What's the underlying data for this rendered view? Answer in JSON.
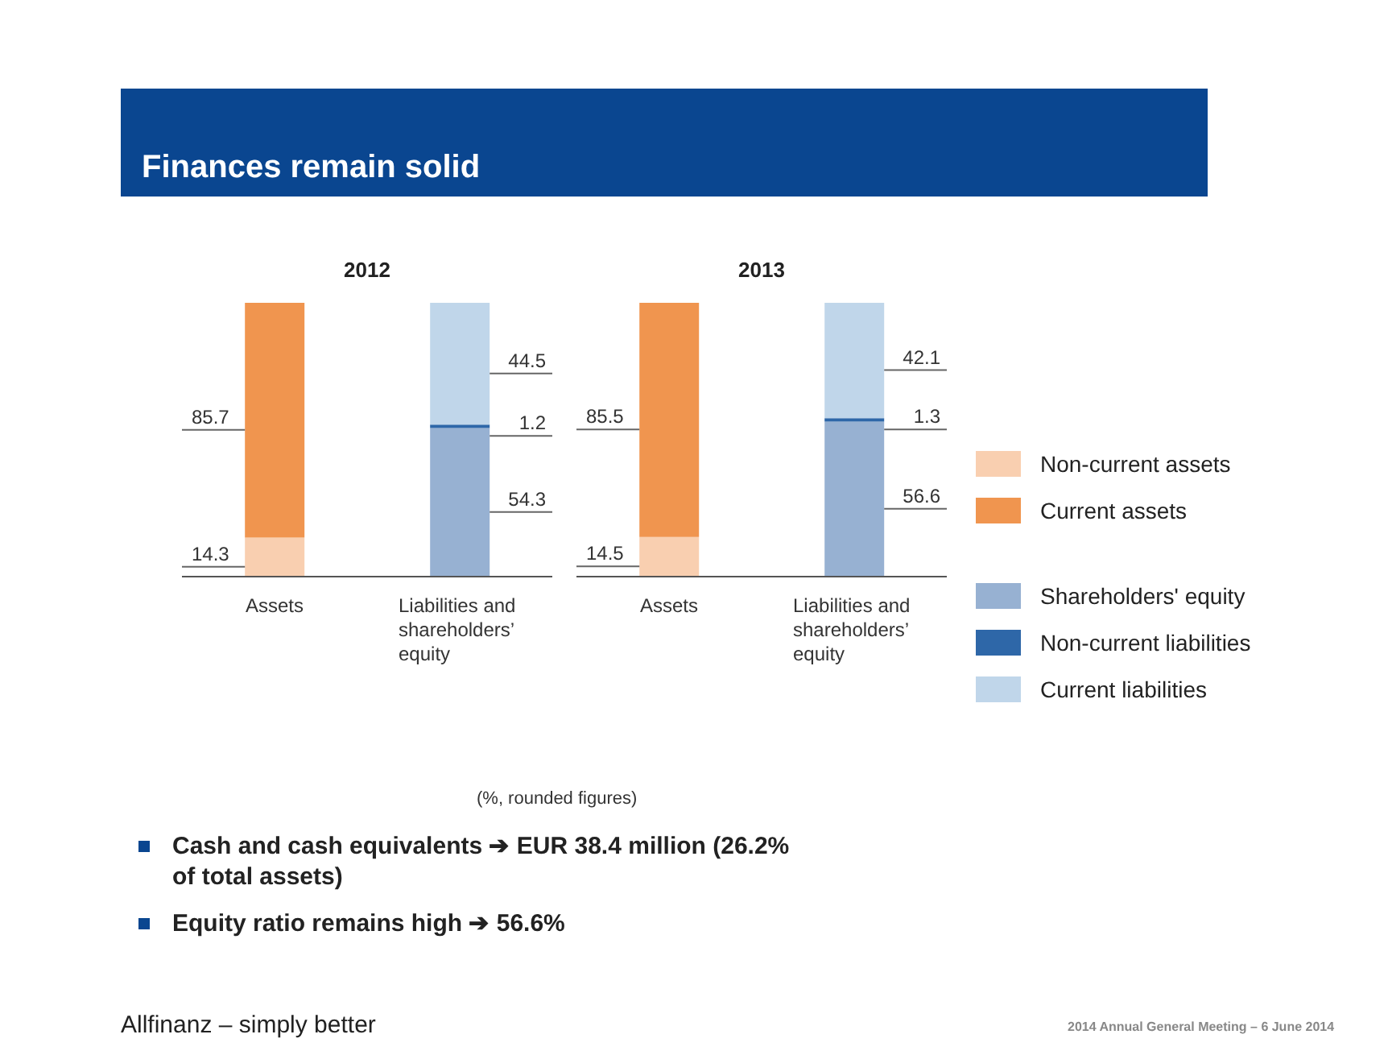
{
  "chart_data": [
    {
      "type": "bar",
      "title": "2012",
      "categories": [
        "Assets",
        "Liabilities and shareholders’ equity"
      ],
      "stacked": true,
      "data_labels": true,
      "series": [
        {
          "color": "#f9cfb0",
          "values": [
            14.3,
            null
          ]
        },
        {
          "color": "#f0954f",
          "values": [
            85.7,
            null
          ]
        },
        {
          "color": "#97b1d2",
          "values": [
            null,
            54.3
          ]
        },
        {
          "color": "#2e67a8",
          "values": [
            null,
            1.2
          ]
        },
        {
          "color": "#c0d6ea",
          "values": [
            null,
            44.5
          ]
        }
      ],
      "annotations": [
        "Finances remain solid",
        "(%, rounded figures)",
        "Cash and cash equivalents ➔ EUR 38.4 million (26.2% of total assets)",
        "Equity ratio remains high ➔ 56.6%",
        "Allfinanz – simply better",
        "2014 Annual General Meeting – 6 June 2014"
      ]
    },
    {
      "type": "bar",
      "title": "2013",
      "categories": [
        "Assets",
        "Liabilities and shareholders’ equity"
      ],
      "stacked": true,
      "data_labels": true,
      "legend": "right",
      "series": [
        {
          "name": "Non-current assets",
          "color": "#f9cfb0",
          "values": [
            14.5,
            null
          ]
        },
        {
          "name": "Current assets",
          "color": "#f0954f",
          "values": [
            85.5,
            null
          ]
        },
        {
          "name": "Shareholders' equity",
          "color": "#97b1d2",
          "values": [
            null,
            56.6
          ]
        },
        {
          "name": "Non-current liabilities",
          "color": "#2e67a8",
          "values": [
            null,
            1.3
          ]
        },
        {
          "name": "Current liabilities",
          "color": "#c0d6ea",
          "values": [
            null,
            42.1
          ]
        }
      ]
    }
  ]
}
